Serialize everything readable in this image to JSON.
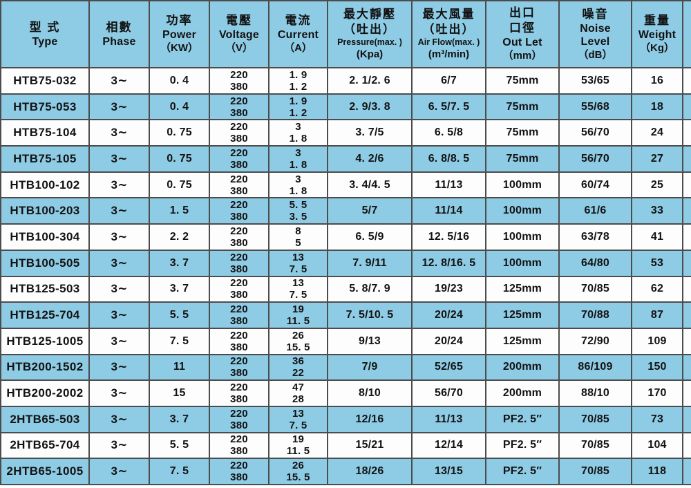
{
  "colors": {
    "row_blue": "#8ecbe4",
    "row_white": "#fdfdfd",
    "border": "#4c4c4c",
    "text": "#121212"
  },
  "table": {
    "columns": [
      {
        "id": "type",
        "lines": [
          [
            "型 式",
            "zh"
          ],
          [
            "Type",
            "en"
          ]
        ]
      },
      {
        "id": "phase",
        "lines": [
          [
            "相數",
            "zh"
          ],
          [
            "Phase",
            "en"
          ]
        ]
      },
      {
        "id": "power",
        "lines": [
          [
            "功率",
            "zh"
          ],
          [
            "Power",
            "en"
          ],
          [
            "（KW）",
            "unit"
          ]
        ]
      },
      {
        "id": "voltage",
        "lines": [
          [
            "電壓",
            "zh"
          ],
          [
            "Voltage",
            "en"
          ],
          [
            "（V）",
            "unit"
          ]
        ]
      },
      {
        "id": "current",
        "lines": [
          [
            "電流",
            "zh"
          ],
          [
            "Current",
            "en"
          ],
          [
            "（A）",
            "unit"
          ]
        ]
      },
      {
        "id": "pressure",
        "lines": [
          [
            "最大靜壓",
            "zh"
          ],
          [
            "（吐出）",
            "zh"
          ],
          [
            "Pressure(max. )",
            "en-sm"
          ],
          [
            "(Kpa)",
            "unit"
          ]
        ]
      },
      {
        "id": "airflow",
        "lines": [
          [
            "最大風量",
            "zh"
          ],
          [
            "（吐出）",
            "zh"
          ],
          [
            "Air Flow(max. )",
            "en-sm"
          ],
          [
            "(m³/min)",
            "unit"
          ]
        ]
      },
      {
        "id": "outlet",
        "lines": [
          [
            "出口",
            "zh"
          ],
          [
            "口徑",
            "zh"
          ],
          [
            "Out Let",
            "en"
          ],
          [
            "（mm）",
            "unit"
          ]
        ]
      },
      {
        "id": "noise",
        "lines": [
          [
            "噪音",
            "zh"
          ],
          [
            "Noise",
            "en"
          ],
          [
            "Level",
            "en"
          ],
          [
            "（dB）",
            "unit"
          ]
        ]
      },
      {
        "id": "weight",
        "lines": [
          [
            "重量",
            "zh"
          ],
          [
            "Weight",
            "en"
          ],
          [
            "（Kg）",
            "unit"
          ]
        ]
      }
    ],
    "rows": [
      [
        "HTB75-032",
        "3∼",
        "0. 4",
        [
          "220",
          "380"
        ],
        [
          "1. 9",
          "1. 2"
        ],
        "2. 1/2. 6",
        "6/7",
        "75mm",
        "53/65",
        "16"
      ],
      [
        "HTB75-053",
        "3∼",
        "0. 4",
        [
          "220",
          "380"
        ],
        [
          "1. 9",
          "1. 2"
        ],
        "2. 9/3. 8",
        "6. 5/7. 5",
        "75mm",
        "55/68",
        "18"
      ],
      [
        "HTB75-104",
        "3∼",
        "0. 75",
        [
          "220",
          "380"
        ],
        [
          "3",
          "1. 8"
        ],
        "3. 7/5",
        "6. 5/8",
        "75mm",
        "56/70",
        "24"
      ],
      [
        "HTB75-105",
        "3∼",
        "0. 75",
        [
          "220",
          "380"
        ],
        [
          "3",
          "1. 8"
        ],
        "4. 2/6",
        "6. 8/8. 5",
        "75mm",
        "56/70",
        "27"
      ],
      [
        "HTB100-102",
        "3∼",
        "0. 75",
        [
          "220",
          "380"
        ],
        [
          "3",
          "1. 8"
        ],
        "3. 4/4. 5",
        "11/13",
        "100mm",
        "60/74",
        "25"
      ],
      [
        "HTB100-203",
        "3∼",
        "1. 5",
        [
          "220",
          "380"
        ],
        [
          "5. 5",
          "3. 5"
        ],
        "5/7",
        "11/14",
        "100mm",
        "61/6",
        "33"
      ],
      [
        "HTB100-304",
        "3∼",
        "2. 2",
        [
          "220",
          "380"
        ],
        [
          "8",
          "5"
        ],
        "6. 5/9",
        "12. 5/16",
        "100mm",
        "63/78",
        "41"
      ],
      [
        "HTB100-505",
        "3∼",
        "3. 7",
        [
          "220",
          "380"
        ],
        [
          "13",
          "7. 5"
        ],
        "7. 9/11",
        "12. 8/16. 5",
        "100mm",
        "64/80",
        "53"
      ],
      [
        "HTB125-503",
        "3∼",
        "3. 7",
        [
          "220",
          "380"
        ],
        [
          "13",
          "7. 5"
        ],
        "5. 8/7. 9",
        "19/23",
        "125mm",
        "70/85",
        "62"
      ],
      [
        "HTB125-704",
        "3∼",
        "5. 5",
        [
          "220",
          "380"
        ],
        [
          "19",
          "11. 5"
        ],
        "7. 5/10. 5",
        "20/24",
        "125mm",
        "70/88",
        "87"
      ],
      [
        "HTB125-1005",
        "3∼",
        "7. 5",
        [
          "220",
          "380"
        ],
        [
          "26",
          "15. 5"
        ],
        "9/13",
        "20/24",
        "125mm",
        "72/90",
        "109"
      ],
      [
        "HTB200-1502",
        "3∼",
        "11",
        [
          "220",
          "380"
        ],
        [
          "36",
          "22"
        ],
        "7/9",
        "52/65",
        "200mm",
        "86/109",
        "150"
      ],
      [
        "HTB200-2002",
        "3∼",
        "15",
        [
          "220",
          "380"
        ],
        [
          "47",
          "28"
        ],
        "8/10",
        "56/70",
        "200mm",
        "88/10",
        "170"
      ],
      [
        "2HTB65-503",
        "3∼",
        "3. 7",
        [
          "220",
          "380"
        ],
        [
          "13",
          "7. 5"
        ],
        "12/16",
        "11/13",
        "PF2. 5″",
        "70/85",
        "73"
      ],
      [
        "2HTB65-704",
        "3∼",
        "5. 5",
        [
          "220",
          "380"
        ],
        [
          "19",
          "11. 5"
        ],
        "15/21",
        "12/14",
        "PF2. 5″",
        "70/85",
        "104"
      ],
      [
        "2HTB65-1005",
        "3∼",
        "7. 5",
        [
          "220",
          "380"
        ],
        [
          "26",
          "15. 5"
        ],
        "18/26",
        "13/15",
        "PF2. 5″",
        "70/85",
        "118"
      ]
    ]
  }
}
